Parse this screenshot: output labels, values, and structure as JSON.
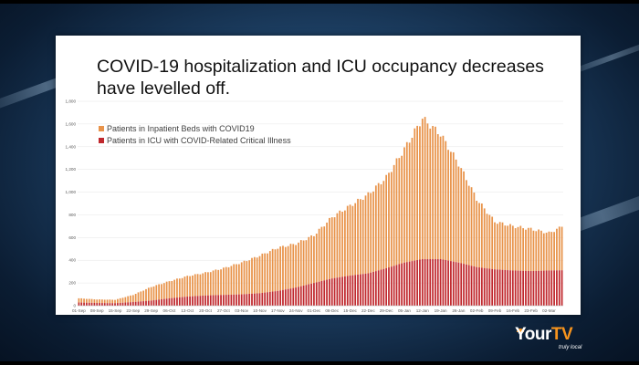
{
  "slide": {
    "title": "COVID-19 hospitalization and ICU occupancy decreases have levelled off."
  },
  "brand": {
    "name_part1": "Your",
    "name_part2": "TV",
    "tagline": "truly local",
    "accent_color": "#f7941d"
  },
  "chart_data": {
    "type": "bar",
    "stacked": true,
    "title": "",
    "xlabel": "",
    "ylabel": "",
    "ylim": [
      0,
      1800
    ],
    "yticks": [
      "0",
      "200",
      "400",
      "600",
      "800",
      "1,000",
      "1,200",
      "1,400",
      "1,600",
      "1,800"
    ],
    "xticks": [
      "01-Sep",
      "08-Sep",
      "15-Sep",
      "22-Sep",
      "29-Sep",
      "06-Oct",
      "13-Oct",
      "20-Oct",
      "27-Oct",
      "03-Nov",
      "10-Nov",
      "17-Nov",
      "24-Nov",
      "01-Dec",
      "08-Dec",
      "15-Dec",
      "22-Dec",
      "29-Dec",
      "05-Jan",
      "12-Jan",
      "19-Jan",
      "26-Jan",
      "02-Feb",
      "09-Feb",
      "16-Feb",
      "23-Feb",
      "02-Mar"
    ],
    "legend_position": "top-left",
    "series": [
      {
        "name": "Patients in Inpatient Beds with COVID19",
        "color": "#e8934a",
        "weekly_total": [
          65,
          55,
          52,
          95,
          165,
          215,
          260,
          290,
          330,
          380,
          440,
          510,
          545,
          620,
          780,
          880,
          980,
          1130,
          1380,
          1650,
          1510,
          1250,
          940,
          740,
          700,
          675,
          640
        ]
      },
      {
        "name": "Patients in ICU with COVID-Related Critical Illness",
        "color": "#c0282d",
        "weekly_total": [
          28,
          24,
          22,
          32,
          45,
          65,
          80,
          90,
          95,
          100,
          110,
          130,
          160,
          200,
          240,
          265,
          285,
          330,
          380,
          410,
          410,
          380,
          340,
          320,
          310,
          305,
          310
        ]
      }
    ],
    "last_point": {
      "date": "06-Mar",
      "inpatient_total": 695,
      "icu": 312
    }
  }
}
